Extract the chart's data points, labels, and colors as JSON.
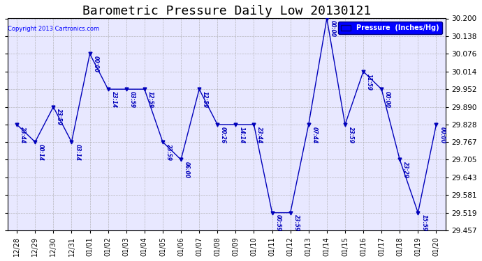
{
  "title": "Barometric Pressure Daily Low 20130121",
  "copyright": "Copyright 2013 Cartronics.com",
  "legend_label": "Pressure  (Inches/Hg)",
  "x_labels": [
    "12/28",
    "12/29",
    "12/30",
    "12/31",
    "01/01",
    "01/02",
    "01/03",
    "01/04",
    "01/05",
    "01/06",
    "01/07",
    "01/08",
    "01/09",
    "01/10",
    "01/11",
    "01/12",
    "01/13",
    "01/14",
    "01/15",
    "01/16",
    "01/17",
    "01/18",
    "01/19",
    "01/20"
  ],
  "y_values": [
    29.828,
    29.767,
    29.89,
    29.767,
    30.076,
    29.952,
    29.952,
    29.952,
    29.767,
    29.705,
    29.952,
    29.828,
    29.828,
    29.828,
    29.519,
    29.519,
    29.828,
    30.2,
    29.828,
    30.014,
    29.952,
    29.705,
    29.519,
    29.828
  ],
  "point_times": [
    "23:44",
    "00:14",
    "23:59",
    "03:14",
    "00:00",
    "23:14",
    "03:59",
    "12:59",
    "23:59",
    "06:00",
    "12:59",
    "00:26",
    "14:14",
    "23:44",
    "00:59",
    "23:59",
    "07:44",
    "00:00",
    "23:59",
    "11:59",
    "00:00",
    "23:29",
    "15:59",
    "00:00"
  ],
  "line_color": "#0000BB",
  "bg_color": "#E8E8FF",
  "grid_color": "#AAAAAA",
  "ylim_min": 29.457,
  "ylim_max": 30.2,
  "yticks": [
    29.457,
    29.519,
    29.581,
    29.643,
    29.705,
    29.767,
    29.828,
    29.89,
    29.952,
    30.014,
    30.076,
    30.138,
    30.2
  ],
  "title_fontsize": 13,
  "legend_bg": "#0000FF",
  "legend_text_color": "#FFFFFF",
  "figwidth": 6.9,
  "figheight": 3.75,
  "dpi": 100
}
